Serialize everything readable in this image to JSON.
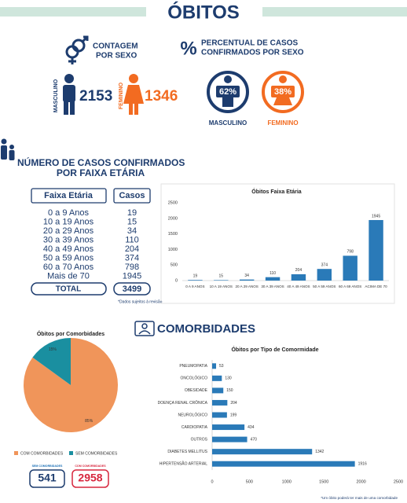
{
  "title": "ÓBITOS",
  "sex_count": {
    "title_lines": [
      "CONTAGEM",
      "POR SEXO"
    ],
    "male": {
      "label": "MASCULINO",
      "value": 2153
    },
    "female": {
      "label": "FEMININO",
      "value": 1346
    }
  },
  "sex_percent": {
    "symbol": "%",
    "title_lines": [
      "PERCENTUAL DE CASOS",
      "CONFIRMADOS POR SEXO"
    ],
    "items": [
      {
        "label": "MASCULINO",
        "value": "62%"
      },
      {
        "label": "FEMININO",
        "value": "38%"
      }
    ]
  },
  "age": {
    "title_lines": [
      "NÚMERO DE CASOS CONFIRMADOS",
      "POR FAIXA ETÁRIA"
    ],
    "table": {
      "header": [
        "Faixa Etária",
        "Casos"
      ],
      "rows": [
        [
          "0 a 9 Anos",
          19
        ],
        [
          "10 a 19 Anos",
          15
        ],
        [
          "20 a 29 Anos",
          34
        ],
        [
          "30 a 39 Anos",
          110
        ],
        [
          "40 a 49 Anos",
          204
        ],
        [
          "50 a 59 Anos",
          374
        ],
        [
          "60 a 70 Anos",
          798
        ],
        [
          "Mais de 70",
          1945
        ]
      ],
      "total": [
        "TOTAL",
        3499
      ]
    },
    "note": "*Dados sujeitos à revisão"
  },
  "comorbidities": {
    "title": "COMORBIDADES",
    "counts": [
      {
        "label": "SEM COMORBIDADES",
        "value": 541
      },
      {
        "label": "COM COMORBIDADES",
        "value": 2958
      }
    ],
    "note": "*Um óbito poderá ter mais de uma comorbidade"
  },
  "chart_data": [
    {
      "type": "bar",
      "title": "Óbitos Faixa Etária",
      "categories": [
        "0 A 9 ANOS",
        "10 A 19 ANOS",
        "20 A 29 ANOS",
        "30 A 39 ANOS",
        "40 A 49 ANOS",
        "50 A 59 ANOS",
        "60 A 69 ANOS",
        "ACIMA DE 70"
      ],
      "values": [
        19,
        15,
        34,
        110,
        204,
        374,
        798,
        1945
      ],
      "color": "#2a7ab8",
      "ylim": [
        0,
        2500
      ],
      "yticks": [
        0,
        500,
        1000,
        1500,
        2000,
        2500
      ]
    },
    {
      "type": "pie",
      "title": "Óbitos por Comorbidades",
      "categories": [
        "COM COMORBIDADES",
        "SEM COMORBIDADES"
      ],
      "values": [
        85,
        15
      ],
      "value_labels": [
        "85%",
        "15%"
      ],
      "colors": [
        "#f0955a",
        "#1a8fa0"
      ]
    },
    {
      "type": "barh",
      "title": "Óbitos por Tipo de Comormidade",
      "categories": [
        "PNEUMOPATIA",
        "ONCOLÓGICO",
        "OBESIDADE",
        "DOENÇA RENAL CRÔNICA",
        "NEUROLÓGICO",
        "CARDIOPATIA",
        "OUTROS",
        "DIABETES MELLITUS",
        "HIPERTENSÃO ARTERIAL"
      ],
      "values": [
        53,
        130,
        150,
        204,
        199,
        434,
        470,
        1342,
        1916
      ],
      "color": "#2a7ab8",
      "xlim": [
        0,
        2500
      ],
      "xticks": [
        0,
        500,
        1000,
        1500,
        2000,
        2500
      ]
    }
  ]
}
